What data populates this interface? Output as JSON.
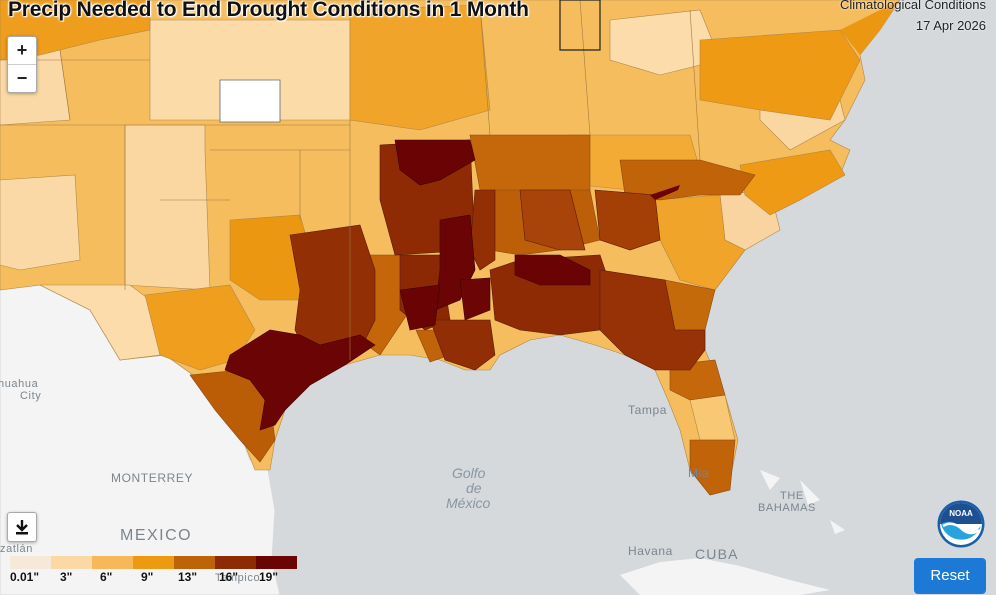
{
  "title": "Precip Needed to End Drought Conditions in 1 Month",
  "subtitle": "Climatological Conditions",
  "date": "17 Apr 2026",
  "controls": {
    "zoom_in": "+",
    "zoom_out": "−",
    "reset_label": "Reset"
  },
  "legend": {
    "labels": [
      "0.01\"",
      "3\"",
      "6\"",
      "9\"",
      "13\"",
      "16\"",
      "19\""
    ],
    "colors": [
      "#f6e9d9",
      "#fad9a5",
      "#f6b85a",
      "#ed9a12",
      "#bf6308",
      "#8f2b04",
      "#6b0505"
    ]
  },
  "places": {
    "monterrey": "MONTERREY",
    "mexico": "MEXICO",
    "chihuahua": "huahua",
    "chihuahua_city": "City",
    "tampa": "Tampa",
    "havana": "Havana",
    "cuba": "CUBA",
    "bahamas_1": "THE",
    "bahamas_2": "BAHAMAS",
    "gulf_1": "Golfo",
    "gulf_2": "de",
    "gulf_3": "México",
    "mazatlan": "zatlán",
    "tampico": "Tampico",
    "mia": "Mia"
  },
  "logo": {
    "text": "NOAA"
  }
}
